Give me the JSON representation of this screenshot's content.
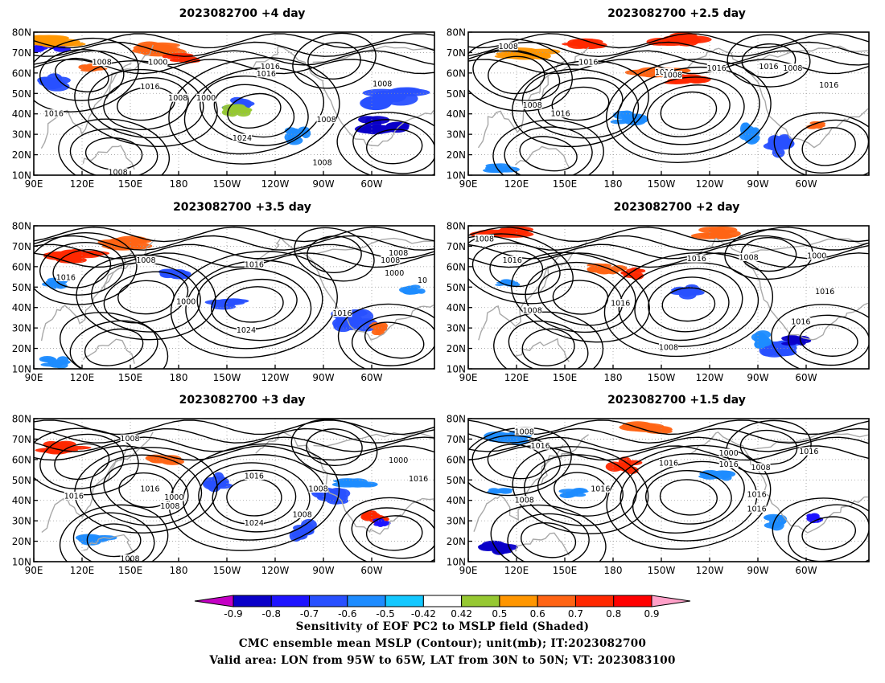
{
  "panels": [
    {
      "id": "p1",
      "title": "2023082700  +4 day",
      "labels": [
        "1008",
        "1000",
        "1016",
        "1008",
        "1016",
        "1016",
        "1000",
        "1008",
        "1016",
        "1024",
        "1008",
        "1008",
        "1008"
      ]
    },
    {
      "id": "p2",
      "title": "2023082700  +2.5 day",
      "labels": [
        "1008",
        "1016",
        "1008",
        "1016",
        "1016",
        "1008",
        "1016",
        "1016",
        "1008",
        "1016"
      ]
    },
    {
      "id": "p3",
      "title": "2023082700  +3.5 day",
      "labels": [
        "1008",
        "1016",
        "1008",
        "1016",
        "1000",
        "1024",
        "1016",
        "1008",
        "1000",
        "10"
      ]
    },
    {
      "id": "p4",
      "title": "2023082700  +2 day",
      "labels": [
        "1008",
        "1016",
        "1008",
        "1016",
        "1016",
        "1008",
        "1000",
        "1016",
        "1008",
        "1016"
      ]
    },
    {
      "id": "p5",
      "title": "2023082700  +3 day",
      "labels": [
        "1008",
        "1016",
        "1016",
        "1000",
        "1008",
        "1016",
        "1024",
        "1008",
        "1008",
        "1000",
        "1016",
        "1008"
      ]
    },
    {
      "id": "p6",
      "title": "2023082700  +1.5 day",
      "labels": [
        "1008",
        "1016",
        "1008",
        "1016",
        "1016",
        "1016",
        "1000",
        "1016",
        "1008",
        "1016",
        "1016"
      ]
    }
  ],
  "axes": {
    "y_ticks": [
      "80N",
      "70N",
      "60N",
      "50N",
      "40N",
      "30N",
      "20N",
      "10N"
    ],
    "x_ticks": [
      "90E",
      "120E",
      "150E",
      "180",
      "150W",
      "120W",
      "90W",
      "60W"
    ]
  },
  "colorbar": {
    "labels": [
      "-0.9",
      "-0.8",
      "-0.7",
      "-0.6",
      "-0.5",
      "-0.42",
      "0.42",
      "0.5",
      "0.6",
      "0.7",
      "0.8",
      "0.9"
    ],
    "colors": [
      "#c400c4",
      "#0a00c8",
      "#1e14ff",
      "#2850ff",
      "#1e8cff",
      "#14c8ff",
      "#ffffff",
      "#96c832",
      "#ff9600",
      "#ff6414",
      "#ff2800",
      "#ff0000",
      "#ffa0c8"
    ]
  },
  "footer": {
    "line1": "Sensitivity of EOF PC2 to MSLP field (Shaded)",
    "line2": "CMC ensemble mean MSLP (Contour); unit(mb); IT:2023082700",
    "line3": "Valid area: LON from 95W to 65W, LAT from 30N to 50N; VT: 2023083100"
  }
}
